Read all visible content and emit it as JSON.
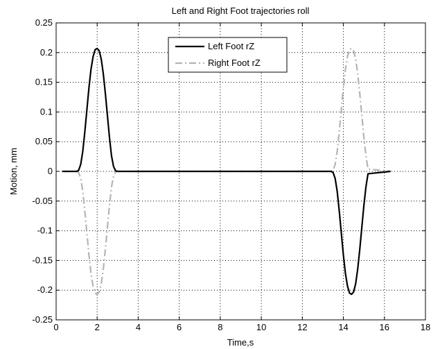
{
  "chart_data": {
    "type": "line",
    "title": "Left and Right Foot trajectories roll",
    "xlabel": "Time,s",
    "ylabel": "Motion, mm",
    "xlim": [
      0,
      18
    ],
    "ylim": [
      -0.25,
      0.25
    ],
    "xticks": [
      0,
      2,
      4,
      6,
      8,
      10,
      12,
      14,
      16,
      18
    ],
    "xtick_labels": [
      "0",
      "2",
      "4",
      "6",
      "8",
      "10",
      "12",
      "14",
      "16",
      "18"
    ],
    "yticks": [
      -0.25,
      -0.2,
      -0.15,
      -0.1,
      -0.05,
      0,
      0.05,
      0.1,
      0.15,
      0.2,
      0.25
    ],
    "ytick_labels": [
      "-0.25",
      "-0.2",
      "-0.15",
      "-0.1",
      "-0.05",
      "0",
      "0.05",
      "0.1",
      "0.15",
      "0.2",
      "0.25"
    ],
    "grid": true,
    "legend_position": "top-center",
    "series": [
      {
        "name": "Left Foot rZ",
        "color": "#000000",
        "style": "solid",
        "x": [
          0.3,
          1.0,
          1.1,
          1.2,
          1.3,
          1.4,
          1.5,
          1.6,
          1.7,
          1.8,
          1.9,
          2.0,
          2.1,
          2.2,
          2.3,
          2.4,
          2.5,
          2.6,
          2.7,
          2.8,
          2.9,
          3.0,
          13.4,
          13.5,
          13.6,
          13.7,
          13.8,
          13.9,
          14.0,
          14.1,
          14.2,
          14.3,
          14.4,
          14.5,
          14.6,
          14.7,
          14.8,
          14.9,
          15.0,
          15.1,
          15.2,
          16.3
        ],
        "y": [
          0,
          0,
          0.002,
          0.012,
          0.034,
          0.067,
          0.104,
          0.141,
          0.172,
          0.193,
          0.205,
          0.207,
          0.203,
          0.189,
          0.164,
          0.131,
          0.094,
          0.057,
          0.026,
          0.008,
          0.001,
          0,
          0,
          -0.002,
          -0.012,
          -0.034,
          -0.067,
          -0.104,
          -0.141,
          -0.172,
          -0.193,
          -0.205,
          -0.207,
          -0.203,
          -0.189,
          -0.164,
          -0.131,
          -0.094,
          -0.057,
          -0.026,
          -0.004,
          0
        ]
      },
      {
        "name": "Right Foot rZ",
        "color": "#b4b4b4",
        "style": "dashdot",
        "x": [
          0.3,
          1.0,
          1.1,
          1.2,
          1.3,
          1.4,
          1.5,
          1.6,
          1.7,
          1.8,
          1.9,
          2.0,
          2.1,
          2.2,
          2.3,
          2.4,
          2.5,
          2.6,
          2.7,
          2.8,
          2.9,
          3.0,
          13.4,
          13.5,
          13.6,
          13.7,
          13.8,
          13.9,
          14.0,
          14.1,
          14.2,
          14.3,
          14.4,
          14.5,
          14.6,
          14.7,
          14.8,
          14.9,
          15.0,
          15.1,
          15.2,
          16.3
        ],
        "y": [
          0,
          0,
          -0.002,
          -0.012,
          -0.034,
          -0.067,
          -0.104,
          -0.141,
          -0.172,
          -0.193,
          -0.205,
          -0.207,
          -0.203,
          -0.189,
          -0.164,
          -0.131,
          -0.094,
          -0.057,
          -0.026,
          -0.008,
          -0.001,
          0,
          0,
          0.002,
          0.012,
          0.034,
          0.067,
          0.104,
          0.141,
          0.172,
          0.193,
          0.205,
          0.207,
          0.203,
          0.189,
          0.164,
          0.131,
          0.094,
          0.057,
          0.026,
          0.004,
          0
        ]
      }
    ]
  }
}
